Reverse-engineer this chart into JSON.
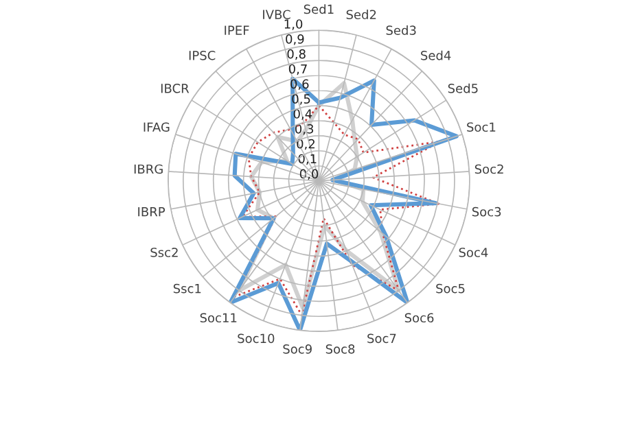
{
  "chart_data": {
    "type": "radar",
    "categories": [
      "Sed1",
      "Sed2",
      "Sed3",
      "Sed4",
      "Sed5",
      "Soc1",
      "Soc2",
      "Soc3",
      "Soc4",
      "Soc5",
      "Soc6",
      "Soc7",
      "Soc8",
      "Soc9",
      "Soc10",
      "Soc11",
      "Ssc1",
      "Ssc2",
      "IBRP",
      "IBRG",
      "IFAG",
      "IBCR",
      "IPSC",
      "IPEF",
      "IVBC"
    ],
    "series": [
      {
        "color": "#d0d0d0",
        "line_style": "solid",
        "values": [
          0.5,
          0.67,
          0.46,
          0.35,
          0.3,
          0.25,
          0.1,
          0.3,
          0.32,
          0.53,
          0.9,
          0.5,
          0.3,
          0.85,
          0.6,
          0.9,
          0.39,
          0.45,
          0.4,
          0.45,
          0.4,
          0.25,
          0.4,
          0.3,
          0.35
        ]
      },
      {
        "color": "#d04040",
        "line_style": "dotted",
        "values": [
          0.5,
          0.4,
          0.35,
          0.38,
          0.35,
          0.85,
          0.36,
          0.81,
          0.45,
          0.55,
          0.9,
          0.6,
          0.25,
          0.9,
          0.7,
          0.95,
          0.37,
          0.56,
          0.4,
          0.45,
          0.49,
          0.48,
          0.44,
          0.39,
          0.4
        ]
      },
      {
        "color": "#5b9bd5",
        "line_style": "solid",
        "values": [
          0.52,
          0.57,
          0.76,
          0.51,
          0.75,
          0.96,
          0.09,
          0.79,
          0.38,
          0.58,
          1.0,
          0.57,
          0.42,
          1.0,
          0.73,
          1.0,
          0.39,
          0.58,
          0.44,
          0.56,
          0.58,
          0.21,
          0.25,
          0.36,
          0.7
        ]
      }
    ],
    "ylim": [
      0,
      1
    ],
    "yticks": [
      {
        "value": 0,
        "label": "0,0"
      },
      {
        "value": 0.1,
        "label": "0,1"
      },
      {
        "value": 0.2,
        "label": "0,2"
      },
      {
        "value": 0.3,
        "label": "0,3"
      },
      {
        "value": 0.4,
        "label": "0,4"
      },
      {
        "value": 0.5,
        "label": "0,5"
      },
      {
        "value": 0.6,
        "label": "0,6"
      },
      {
        "value": 0.7,
        "label": "0,7"
      },
      {
        "value": 0.8,
        "label": "0,8"
      },
      {
        "value": 0.9,
        "label": "0,9"
      },
      {
        "value": 1,
        "label": "1,0"
      }
    ],
    "grid": true,
    "marker": "none"
  }
}
